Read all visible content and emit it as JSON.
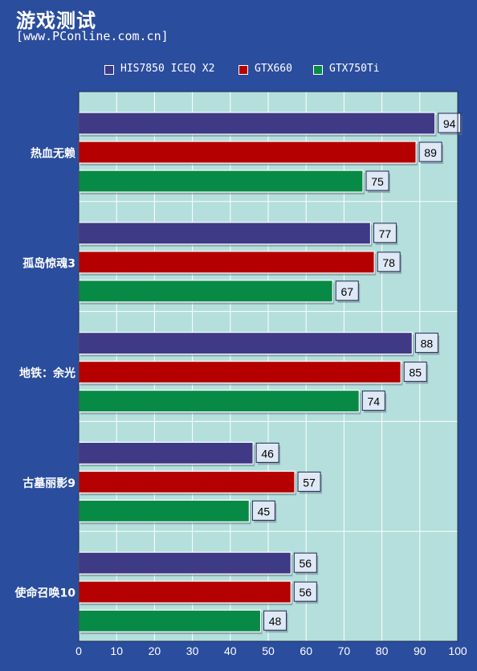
{
  "title": "游戏测试",
  "subtitle": "[www.PConline.com.cn]",
  "chart_data": {
    "type": "bar",
    "orientation": "horizontal",
    "categories": [
      "热血无赖",
      "孤岛惊魂3",
      "地铁：余光",
      "古墓丽影9",
      "使命召唤10"
    ],
    "series": [
      {
        "name": "HIS7850 ICEQ X2",
        "color": "#3f3a85",
        "values": [
          94,
          77,
          88,
          46,
          56
        ]
      },
      {
        "name": "GTX660",
        "color": "#b50000",
        "values": [
          89,
          78,
          85,
          57,
          56
        ]
      },
      {
        "name": "GTX750Ti",
        "color": "#078a45",
        "values": [
          75,
          67,
          74,
          45,
          48
        ]
      }
    ],
    "xlim": [
      0,
      100
    ],
    "xticks": [
      "0",
      "10",
      "20",
      "30",
      "40",
      "50",
      "60",
      "70",
      "80",
      "90",
      "100"
    ],
    "legend_position": "top",
    "grid": true,
    "plot_background": "#b4dfdc"
  }
}
